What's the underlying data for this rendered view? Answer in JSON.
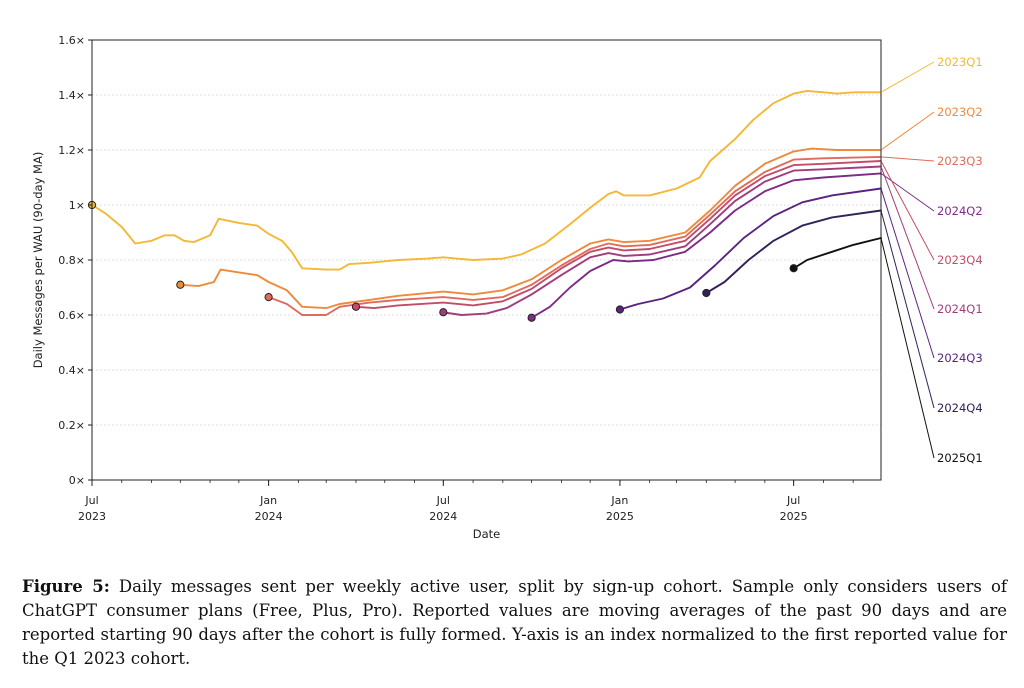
{
  "chart_data": {
    "type": "line",
    "xlabel": "Date",
    "ylabel": "Daily Messages per WAU (90-day MA)",
    "x_ticks": [
      {
        "date": "2023-07-01",
        "line1": "Jul",
        "line2": "2023"
      },
      {
        "date": "2024-01-01",
        "line1": "Jan",
        "line2": "2024"
      },
      {
        "date": "2024-07-01",
        "line1": "Jul",
        "line2": "2024"
      },
      {
        "date": "2025-01-01",
        "line1": "Jan",
        "line2": "2025"
      },
      {
        "date": "2025-07-01",
        "line1": "Jul",
        "line2": "2025"
      }
    ],
    "xlim": [
      "2023-07-01",
      "2025-09-30"
    ],
    "y_ticks": [
      {
        "value": 0,
        "label": "0×"
      },
      {
        "value": 0.2,
        "label": "0.2×"
      },
      {
        "value": 0.4,
        "label": "0.4×"
      },
      {
        "value": 0.6,
        "label": "0.6×"
      },
      {
        "value": 0.8,
        "label": "0.8×"
      },
      {
        "value": 1.0,
        "label": "1×"
      },
      {
        "value": 1.2,
        "label": "1.2×"
      },
      {
        "value": 1.4,
        "label": "1.4×"
      },
      {
        "value": 1.6,
        "label": "1.6×"
      }
    ],
    "ylim": [
      0,
      1.6
    ],
    "grid": "horizontal dotted",
    "legend": "right, labels at line ends",
    "series": [
      {
        "name": "2023Q1",
        "color": "#f5b735",
        "start": {
          "x": "2023-07-01",
          "y": 1.0
        },
        "points": [
          [
            "2023-07-01",
            1.0
          ],
          [
            "2023-07-15",
            0.97
          ],
          [
            "2023-08-01",
            0.92
          ],
          [
            "2023-08-15",
            0.86
          ],
          [
            "2023-09-01",
            0.87
          ],
          [
            "2023-09-15",
            0.89
          ],
          [
            "2023-09-25",
            0.89
          ],
          [
            "2023-10-05",
            0.87
          ],
          [
            "2023-10-15",
            0.865
          ],
          [
            "2023-11-01",
            0.89
          ],
          [
            "2023-11-10",
            0.95
          ],
          [
            "2023-12-01",
            0.935
          ],
          [
            "2023-12-20",
            0.925
          ],
          [
            "2024-01-01",
            0.895
          ],
          [
            "2024-01-15",
            0.87
          ],
          [
            "2024-01-25",
            0.83
          ],
          [
            "2024-02-05",
            0.77
          ],
          [
            "2024-03-01",
            0.765
          ],
          [
            "2024-03-15",
            0.765
          ],
          [
            "2024-03-25",
            0.785
          ],
          [
            "2024-04-15",
            0.79
          ],
          [
            "2024-05-15",
            0.8
          ],
          [
            "2024-06-15",
            0.805
          ],
          [
            "2024-07-01",
            0.81
          ],
          [
            "2024-07-15",
            0.805
          ],
          [
            "2024-08-01",
            0.8
          ],
          [
            "2024-09-01",
            0.805
          ],
          [
            "2024-09-20",
            0.82
          ],
          [
            "2024-10-15",
            0.86
          ],
          [
            "2024-11-10",
            0.93
          ],
          [
            "2024-12-01",
            0.99
          ],
          [
            "2024-12-20",
            1.04
          ],
          [
            "2024-12-28",
            1.05
          ],
          [
            "2025-01-05",
            1.035
          ],
          [
            "2025-02-01",
            1.035
          ],
          [
            "2025-03-01",
            1.06
          ],
          [
            "2025-03-25",
            1.1
          ],
          [
            "2025-04-05",
            1.16
          ],
          [
            "2025-05-01",
            1.24
          ],
          [
            "2025-05-20",
            1.31
          ],
          [
            "2025-06-10",
            1.37
          ],
          [
            "2025-07-01",
            1.405
          ],
          [
            "2025-07-15",
            1.415
          ],
          [
            "2025-08-01",
            1.41
          ],
          [
            "2025-08-15",
            1.405
          ],
          [
            "2025-09-01",
            1.41
          ],
          [
            "2025-09-30",
            1.41
          ]
        ]
      },
      {
        "name": "2023Q2",
        "color": "#ef8a3a",
        "start": {
          "x": "2023-10-01",
          "y": 0.71
        },
        "points": [
          [
            "2023-10-01",
            0.71
          ],
          [
            "2023-10-20",
            0.705
          ],
          [
            "2023-11-05",
            0.72
          ],
          [
            "2023-11-12",
            0.765
          ],
          [
            "2023-12-01",
            0.755
          ],
          [
            "2023-12-20",
            0.745
          ],
          [
            "2024-01-01",
            0.72
          ],
          [
            "2024-01-20",
            0.69
          ],
          [
            "2024-02-05",
            0.63
          ],
          [
            "2024-03-01",
            0.625
          ],
          [
            "2024-03-15",
            0.64
          ],
          [
            "2024-04-15",
            0.655
          ],
          [
            "2024-05-15",
            0.67
          ],
          [
            "2024-07-01",
            0.685
          ],
          [
            "2024-08-01",
            0.675
          ],
          [
            "2024-09-01",
            0.69
          ],
          [
            "2024-10-01",
            0.73
          ],
          [
            "2024-11-01",
            0.8
          ],
          [
            "2024-12-01",
            0.86
          ],
          [
            "2024-12-20",
            0.875
          ],
          [
            "2025-01-05",
            0.865
          ],
          [
            "2025-02-01",
            0.87
          ],
          [
            "2025-03-10",
            0.9
          ],
          [
            "2025-04-05",
            0.98
          ],
          [
            "2025-05-01",
            1.07
          ],
          [
            "2025-06-01",
            1.15
          ],
          [
            "2025-07-01",
            1.195
          ],
          [
            "2025-07-20",
            1.205
          ],
          [
            "2025-08-15",
            1.2
          ],
          [
            "2025-09-30",
            1.2
          ]
        ]
      },
      {
        "name": "2023Q3",
        "color": "#e06a5d",
        "start": {
          "x": "2024-01-01",
          "y": 0.665
        },
        "points": [
          [
            "2024-01-01",
            0.665
          ],
          [
            "2024-01-20",
            0.64
          ],
          [
            "2024-02-05",
            0.6
          ],
          [
            "2024-03-01",
            0.6
          ],
          [
            "2024-03-15",
            0.63
          ],
          [
            "2024-04-15",
            0.645
          ],
          [
            "2024-05-15",
            0.655
          ],
          [
            "2024-07-01",
            0.665
          ],
          [
            "2024-08-01",
            0.655
          ],
          [
            "2024-09-01",
            0.665
          ],
          [
            "2024-10-01",
            0.71
          ],
          [
            "2024-11-01",
            0.78
          ],
          [
            "2024-12-01",
            0.84
          ],
          [
            "2024-12-20",
            0.86
          ],
          [
            "2025-01-05",
            0.85
          ],
          [
            "2025-02-01",
            0.855
          ],
          [
            "2025-03-10",
            0.885
          ],
          [
            "2025-04-05",
            0.965
          ],
          [
            "2025-05-01",
            1.05
          ],
          [
            "2025-06-01",
            1.12
          ],
          [
            "2025-07-01",
            1.165
          ],
          [
            "2025-08-01",
            1.17
          ],
          [
            "2025-09-30",
            1.175
          ]
        ]
      },
      {
        "name": "2024Q2",
        "color": "#7d2b86",
        "start": {
          "x": "2024-10-01",
          "y": 0.59
        },
        "points": [
          [
            "2024-10-01",
            0.59
          ],
          [
            "2024-10-20",
            0.63
          ],
          [
            "2024-11-10",
            0.7
          ],
          [
            "2024-12-01",
            0.76
          ],
          [
            "2024-12-25",
            0.8
          ],
          [
            "2025-01-10",
            0.795
          ],
          [
            "2025-02-05",
            0.8
          ],
          [
            "2025-03-10",
            0.83
          ],
          [
            "2025-04-05",
            0.9
          ],
          [
            "2025-05-01",
            0.98
          ],
          [
            "2025-06-01",
            1.05
          ],
          [
            "2025-07-01",
            1.09
          ],
          [
            "2025-08-01",
            1.1
          ],
          [
            "2025-09-30",
            1.115
          ]
        ]
      },
      {
        "name": "2023Q4",
        "color": "#c44c66",
        "start": {
          "x": "2024-04-01",
          "y": 0.63
        },
        "points": [
          [
            "2024-04-01",
            0.63
          ],
          [
            "2024-04-20",
            0.625
          ],
          [
            "2024-05-15",
            0.635
          ],
          [
            "2024-07-01",
            0.645
          ],
          [
            "2024-08-01",
            0.635
          ],
          [
            "2024-09-01",
            0.65
          ],
          [
            "2024-10-01",
            0.695
          ],
          [
            "2024-11-01",
            0.77
          ],
          [
            "2024-12-01",
            0.83
          ],
          [
            "2024-12-20",
            0.845
          ],
          [
            "2025-01-05",
            0.835
          ],
          [
            "2025-02-01",
            0.84
          ],
          [
            "2025-03-10",
            0.87
          ],
          [
            "2025-04-05",
            0.95
          ],
          [
            "2025-05-01",
            1.035
          ],
          [
            "2025-06-01",
            1.105
          ],
          [
            "2025-07-01",
            1.145
          ],
          [
            "2025-08-01",
            1.15
          ],
          [
            "2025-09-30",
            1.16
          ]
        ]
      },
      {
        "name": "2024Q1",
        "color": "#a13c7d",
        "start": {
          "x": "2024-07-01",
          "y": 0.61
        },
        "points": [
          [
            "2024-07-01",
            0.61
          ],
          [
            "2024-07-20",
            0.6
          ],
          [
            "2024-08-15",
            0.605
          ],
          [
            "2024-09-05",
            0.625
          ],
          [
            "2024-10-01",
            0.675
          ],
          [
            "2024-11-01",
            0.745
          ],
          [
            "2024-12-01",
            0.81
          ],
          [
            "2024-12-20",
            0.825
          ],
          [
            "2025-01-05",
            0.815
          ],
          [
            "2025-02-01",
            0.82
          ],
          [
            "2025-03-10",
            0.85
          ],
          [
            "2025-04-05",
            0.93
          ],
          [
            "2025-05-01",
            1.015
          ],
          [
            "2025-06-01",
            1.085
          ],
          [
            "2025-07-01",
            1.125
          ],
          [
            "2025-08-01",
            1.13
          ],
          [
            "2025-09-30",
            1.14
          ]
        ]
      },
      {
        "name": "2024Q3",
        "color": "#5a2381",
        "start": {
          "x": "2025-01-01",
          "y": 0.62
        },
        "points": [
          [
            "2025-01-01",
            0.62
          ],
          [
            "2025-01-20",
            0.64
          ],
          [
            "2025-02-15",
            0.66
          ],
          [
            "2025-03-15",
            0.7
          ],
          [
            "2025-04-10",
            0.78
          ],
          [
            "2025-05-10",
            0.88
          ],
          [
            "2025-06-10",
            0.96
          ],
          [
            "2025-07-10",
            1.01
          ],
          [
            "2025-08-10",
            1.035
          ],
          [
            "2025-09-30",
            1.06
          ]
        ]
      },
      {
        "name": "2024Q4",
        "color": "#33215a",
        "start": {
          "x": "2025-04-01",
          "y": 0.68
        },
        "points": [
          [
            "2025-04-01",
            0.68
          ],
          [
            "2025-04-20",
            0.72
          ],
          [
            "2025-05-15",
            0.8
          ],
          [
            "2025-06-10",
            0.87
          ],
          [
            "2025-07-10",
            0.925
          ],
          [
            "2025-08-10",
            0.955
          ],
          [
            "2025-09-30",
            0.98
          ]
        ]
      },
      {
        "name": "2025Q1",
        "color": "#111111",
        "start": {
          "x": "2025-07-01",
          "y": 0.77
        },
        "points": [
          [
            "2025-07-01",
            0.77
          ],
          [
            "2025-07-15",
            0.8
          ],
          [
            "2025-08-10",
            0.83
          ],
          [
            "2025-09-01",
            0.855
          ],
          [
            "2025-09-30",
            0.88
          ]
        ]
      }
    ]
  },
  "caption": {
    "label": "Figure 5:",
    "text": " Daily messages sent per weekly active user, split by sign-up cohort. Sample only considers users of ChatGPT consumer plans (Free, Plus, Pro). Reported values are moving averages of the past 90 days and are reported starting 90 days after the cohort is fully formed. Y-axis is an index normalized to the first reported value for the Q1 2023 cohort."
  }
}
